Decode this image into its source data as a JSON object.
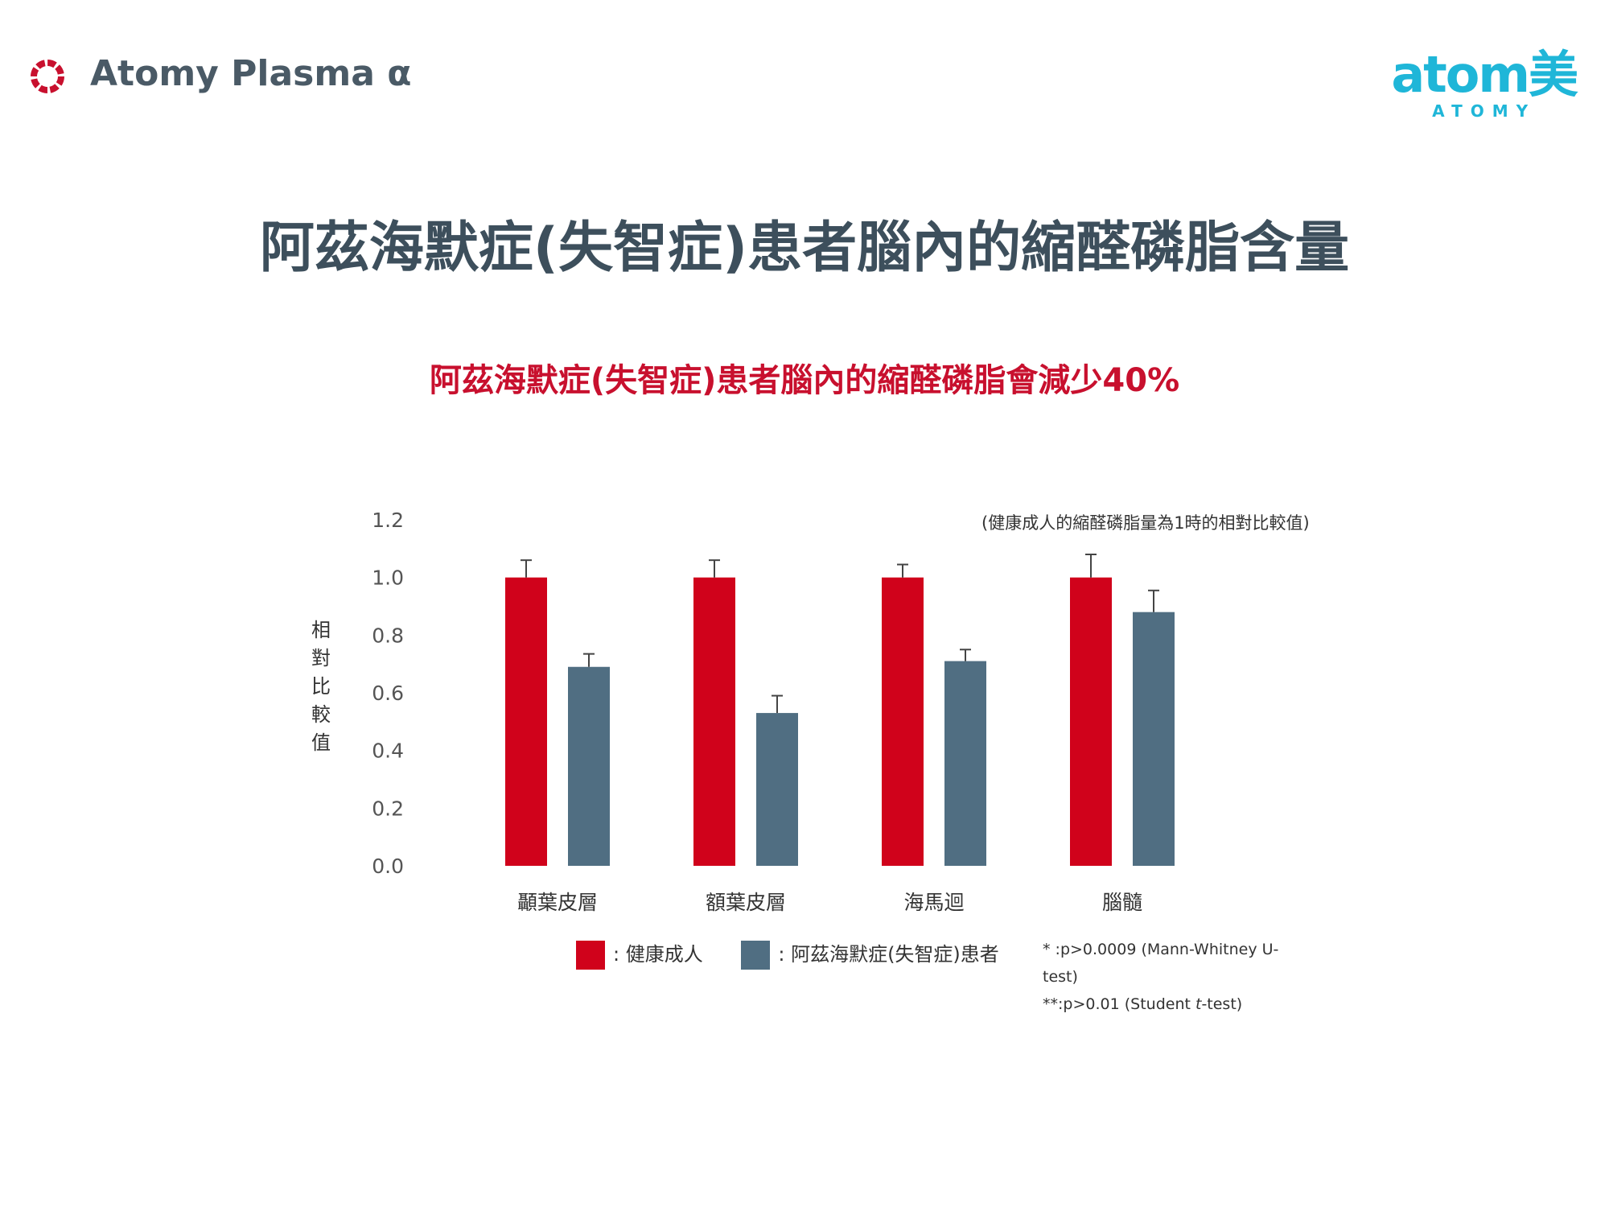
{
  "header": {
    "brand": "Atomy Plasma α",
    "logo_icon": "red-ring-icon",
    "atomy_logo_word": "atom美",
    "atomy_logo_sub": "ATOMY",
    "colors": {
      "brand_red": "#c8102e",
      "logo_cyan": "#1fb6d8"
    }
  },
  "main_title": "阿茲海默症(失智症)患者腦內的縮醛磷脂含量",
  "subtitle": "阿茲海默症(失智症)患者腦內的縮醛磷脂會減少40%",
  "note_top": "(健康成人的縮醛磷脂量為1時的相對比較值)",
  "chart_data": {
    "type": "bar",
    "categories": [
      "顳葉皮層",
      "額葉皮層",
      "海馬迴",
      "腦髓"
    ],
    "series": [
      {
        "name": "健康成人",
        "color": "#d0021b",
        "values": [
          1.0,
          1.0,
          1.0,
          1.0
        ],
        "errors": [
          0.06,
          0.06,
          0.045,
          0.08
        ]
      },
      {
        "name": "阿茲海默症(失智症)患者",
        "color": "#506e82",
        "values": [
          0.69,
          0.53,
          0.71,
          0.88
        ],
        "errors": [
          0.045,
          0.06,
          0.04,
          0.075
        ]
      }
    ],
    "ylabel": "相對比較值",
    "ylim": [
      0,
      1.2
    ],
    "yticks": [
      "0.0",
      "0.2",
      "0.4",
      "0.6",
      "0.8",
      "1.0",
      "1.2"
    ],
    "grid": false,
    "legend": "bottom"
  },
  "legend": {
    "healthy_label": ": 健康成人",
    "patient_label": ": 阿茲海默症(失智症)患者"
  },
  "notes": {
    "line1": "* :p>0.0009 (Mann-Whitney U-test)",
    "line2_prefix": "**:p>0.01 (Student ",
    "line2_italic": "t",
    "line2_suffix": "-test)"
  }
}
